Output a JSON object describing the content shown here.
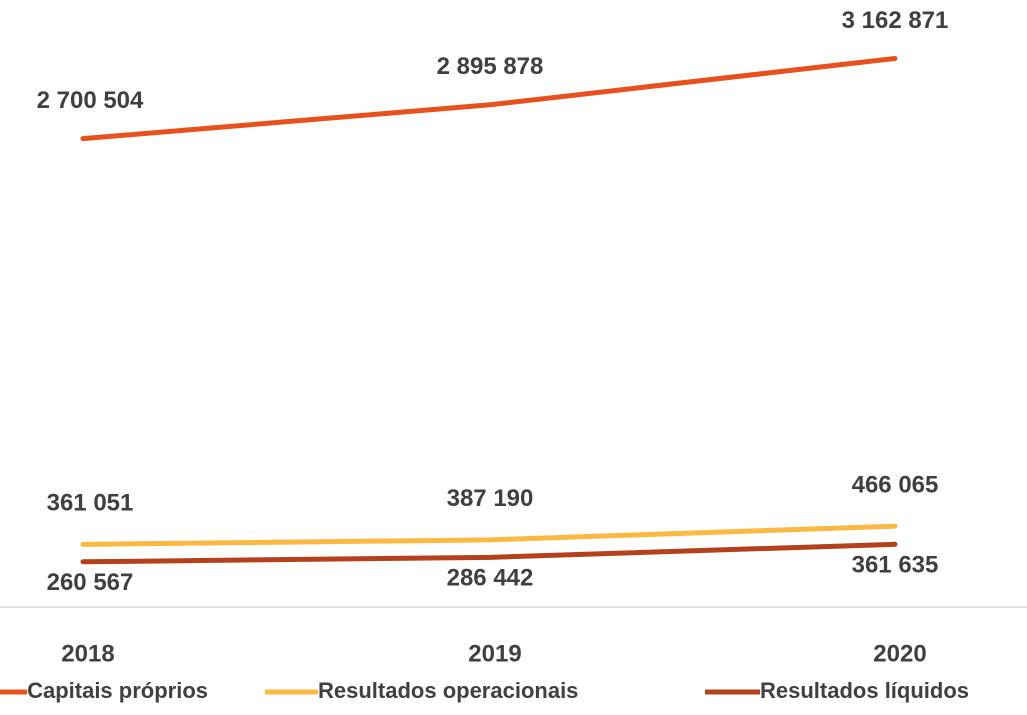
{
  "chart_data": {
    "type": "line",
    "categories": [
      "2018",
      "2019",
      "2020"
    ],
    "series": [
      {
        "name": "Capitais próprios",
        "color": "#e8501e",
        "values": [
          2700504,
          2895878,
          3162871
        ],
        "value_labels": [
          "2 700 504",
          "2 895 878",
          "3 162 871"
        ]
      },
      {
        "name": "Resultados operacionais",
        "color": "#fbb842",
        "values": [
          361051,
          387190,
          466065
        ],
        "value_labels": [
          "361 051",
          "387 190",
          "466 065"
        ]
      },
      {
        "name": "Resultados líquidos",
        "color": "#b5401c",
        "values": [
          260567,
          286442,
          361635
        ],
        "value_labels": [
          "260 567",
          "286 442",
          "361 635"
        ]
      }
    ],
    "ylim": [
      0,
      3500000
    ],
    "legend": "bottom"
  }
}
